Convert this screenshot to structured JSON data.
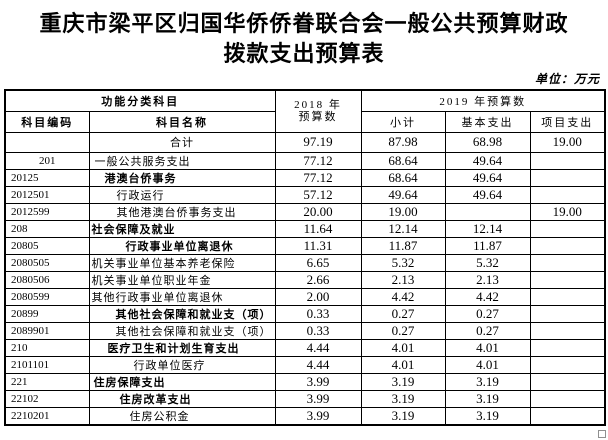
{
  "page": {
    "title_line1": "重庆市梁平区归国华侨侨眷联合会一般公共预算财政",
    "title_line2": "拨款支出预算表",
    "unit_label": "单位：万元"
  },
  "colors": {
    "background": "#ffffff",
    "text": "#000000",
    "border": "#000000",
    "end_marker_border": "#909090"
  },
  "table": {
    "headers": {
      "func_group": "功能分类科目",
      "code": "科目编码",
      "name": "科目名称",
      "y2018_line1": "2018 年",
      "y2018_line2": "预算数",
      "y2019_group": "2019 年预算数",
      "subtotal": "小计",
      "basic": "基本支出",
      "project": "项目支出"
    },
    "rows": [
      {
        "code": "",
        "name": "合计",
        "y2018": "97.19",
        "subtotal": "87.98",
        "basic": "68.98",
        "project": "19.00",
        "bold": false,
        "name_center": true,
        "summary": true
      },
      {
        "code": "201",
        "code_center": true,
        "name": "一般公共服务支出",
        "y2018": "77.12",
        "subtotal": "68.64",
        "basic": "49.64",
        "project": "",
        "bold": false,
        "indent": 5
      },
      {
        "code": "20125",
        "name": "港澳台侨事务",
        "y2018": "77.12",
        "subtotal": "68.64",
        "basic": "49.64",
        "project": "",
        "bold": true,
        "indent": 15
      },
      {
        "code": "2012501",
        "name": "行政运行",
        "y2018": "57.12",
        "subtotal": "49.64",
        "basic": "49.64",
        "project": "",
        "bold": false,
        "indent": 27
      },
      {
        "code": "2012599",
        "name": "其他港澳台侨事务支出",
        "y2018": "20.00",
        "subtotal": "19.00",
        "basic": "",
        "project": "19.00",
        "bold": false,
        "indent": 27
      },
      {
        "code": "208",
        "name": "社会保障及就业",
        "y2018": "11.64",
        "subtotal": "12.14",
        "basic": "12.14",
        "project": "",
        "bold": true,
        "indent": 2
      },
      {
        "code": "20805",
        "name": "行政事业单位离退休",
        "y2018": "11.31",
        "subtotal": "11.87",
        "basic": "11.87",
        "project": "",
        "bold": true,
        "indent": 36
      },
      {
        "code": "2080505",
        "name": "机关事业单位基本养老保险",
        "y2018": "6.65",
        "subtotal": "5.32",
        "basic": "5.32",
        "project": "",
        "bold": false,
        "indent": 2
      },
      {
        "code": "2080506",
        "name": "机关事业单位职业年金",
        "y2018": "2.66",
        "subtotal": "2.13",
        "basic": "2.13",
        "project": "",
        "bold": false,
        "indent": 2
      },
      {
        "code": "2080599",
        "name": "其他行政事业单位离退休",
        "y2018": "2.00",
        "subtotal": "4.42",
        "basic": "4.42",
        "project": "",
        "bold": false,
        "indent": 2
      },
      {
        "code": "20899",
        "name": "其他社会保障和就业支（项）",
        "y2018": "0.33",
        "subtotal": "0.27",
        "basic": "0.27",
        "project": "",
        "bold": true,
        "indent": 26
      },
      {
        "code": "2089901",
        "name": "其他社会保障和就业支（项）",
        "y2018": "0.33",
        "subtotal": "0.27",
        "basic": "0.27",
        "project": "",
        "bold": false,
        "indent": 26
      },
      {
        "code": "210",
        "name": "医疗卫生和计划生育支出",
        "y2018": "4.44",
        "subtotal": "4.01",
        "basic": "4.01",
        "project": "",
        "bold": true,
        "indent": 18
      },
      {
        "code": "2101101",
        "name": "行政单位医疗",
        "y2018": "4.44",
        "subtotal": "4.01",
        "basic": "4.01",
        "project": "",
        "bold": false,
        "indent": 44
      },
      {
        "code": "221",
        "name": "住房保障支出",
        "y2018": "3.99",
        "subtotal": "3.19",
        "basic": "3.19",
        "project": "",
        "bold": true,
        "indent": 4
      },
      {
        "code": "22102",
        "name": "住房改革支出",
        "y2018": "3.99",
        "subtotal": "3.19",
        "basic": "3.19",
        "project": "",
        "bold": true,
        "indent": 30
      },
      {
        "code": "2210201",
        "name": "住房公积金",
        "y2018": "3.99",
        "subtotal": "3.19",
        "basic": "3.19",
        "project": "",
        "bold": false,
        "indent": 40
      }
    ]
  }
}
